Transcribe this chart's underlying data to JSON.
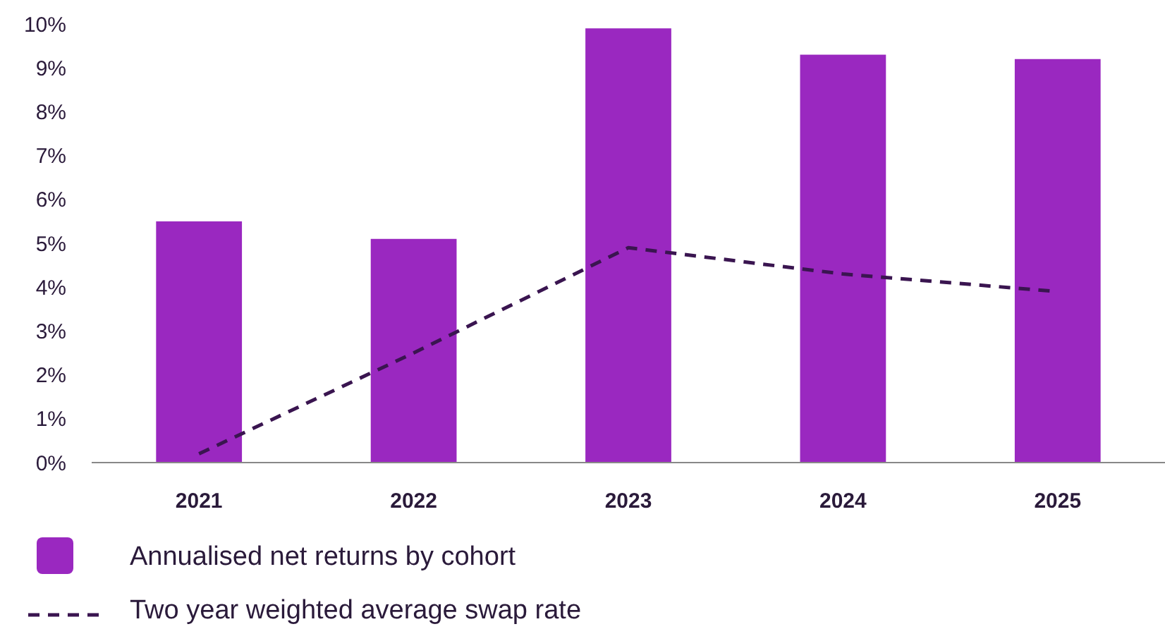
{
  "chart_data": {
    "type": "bar",
    "categories": [
      "2021",
      "2022",
      "2023",
      "2024",
      "2025"
    ],
    "series": [
      {
        "name": "Annualised net returns by cohort",
        "color": "#9a28c0",
        "values": [
          5.5,
          5.1,
          9.9,
          9.3,
          9.2
        ]
      },
      {
        "name": "Two year weighted average swap rate",
        "type": "line",
        "color": "#3a1550",
        "line_style": "dashed",
        "marker": "none",
        "values": [
          0.2,
          2.5,
          4.9,
          4.3,
          3.9
        ]
      }
    ],
    "ylim": [
      0,
      10
    ],
    "yticks": [
      {
        "value": 0,
        "label": "0%"
      },
      {
        "value": 1,
        "label": "1%"
      },
      {
        "value": 2,
        "label": "2%"
      },
      {
        "value": 3,
        "label": "3%"
      },
      {
        "value": 4,
        "label": "4%"
      },
      {
        "value": 5,
        "label": "5%"
      },
      {
        "value": 6,
        "label": "6%"
      },
      {
        "value": 7,
        "label": "7%"
      },
      {
        "value": 8,
        "label": "8%"
      },
      {
        "value": 9,
        "label": "9%"
      },
      {
        "value": 10,
        "label": "10%"
      }
    ],
    "grid": false,
    "legend": "bottom left"
  }
}
